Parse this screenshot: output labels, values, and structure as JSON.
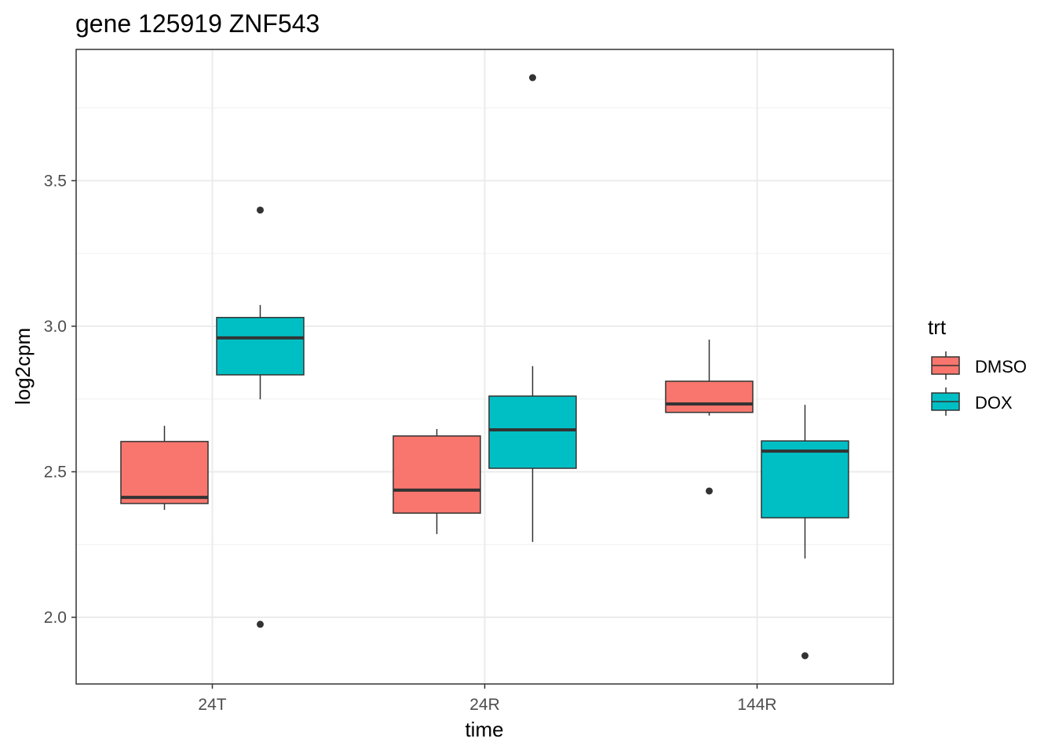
{
  "chart_data": {
    "type": "boxplot",
    "title": "gene 125919 ZNF543",
    "xlabel": "time",
    "ylabel": "log2cpm",
    "categories": [
      "24T",
      "24R",
      "144R"
    ],
    "ylim": [
      1.771,
      3.951
    ],
    "yticks": [
      2.0,
      2.5,
      3.0,
      3.5
    ],
    "ytick_labels": [
      "2.0",
      "2.5",
      "3.0",
      "3.5"
    ],
    "grid": true,
    "legend": {
      "title": "trt",
      "position": "right",
      "entries": [
        "DMSO",
        "DOX"
      ]
    },
    "colors": {
      "DMSO": "#F8766D",
      "DOX": "#00BFC4"
    },
    "series": [
      {
        "name": "DMSO",
        "boxes": [
          {
            "category": "24T",
            "lower": 2.369,
            "q1": 2.391,
            "median": 2.412,
            "q3": 2.604,
            "upper": 2.658,
            "outliers": []
          },
          {
            "category": "24R",
            "lower": 2.286,
            "q1": 2.358,
            "median": 2.437,
            "q3": 2.623,
            "upper": 2.647,
            "outliers": []
          },
          {
            "category": "144R",
            "lower": 2.693,
            "q1": 2.704,
            "median": 2.733,
            "q3": 2.811,
            "upper": 2.954,
            "outliers": [
              2.434
            ]
          }
        ]
      },
      {
        "name": "DOX",
        "boxes": [
          {
            "category": "24T",
            "lower": 2.749,
            "q1": 2.833,
            "median": 2.96,
            "q3": 3.03,
            "upper": 3.073,
            "outliers": [
              3.399,
              1.976
            ]
          },
          {
            "category": "24R",
            "lower": 2.259,
            "q1": 2.512,
            "median": 2.644,
            "q3": 2.76,
            "upper": 2.863,
            "outliers": [
              3.854
            ]
          },
          {
            "category": "144R",
            "lower": 2.202,
            "q1": 2.342,
            "median": 2.571,
            "q3": 2.606,
            "upper": 2.73,
            "outliers": [
              1.868
            ]
          }
        ]
      }
    ]
  }
}
